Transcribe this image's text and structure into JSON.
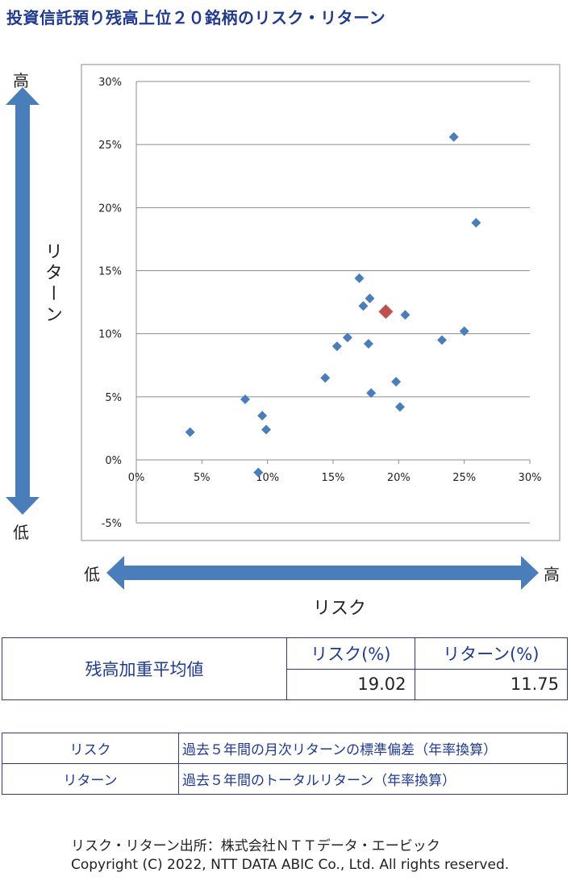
{
  "title": "投資信託預り残高上位２０銘柄のリスク・リターン",
  "labels": {
    "y_high": "高",
    "y_low": "低",
    "y_axis": "リターン",
    "x_low": "低",
    "x_high": "高",
    "x_axis": "リスク"
  },
  "colors": {
    "title": "#1f3a8f",
    "arrow": "#4a7ebb",
    "point": "#4a7ebb",
    "highlight": "#c0504d",
    "table_border": "#2b3e7a"
  },
  "chart_data": {
    "type": "scatter",
    "xlim": [
      0,
      30
    ],
    "ylim": [
      -5,
      30
    ],
    "x_ticks": [
      "0%",
      "5%",
      "10%",
      "15%",
      "20%",
      "25%",
      "30%"
    ],
    "y_ticks": [
      "-5%",
      "0%",
      "5%",
      "10%",
      "15%",
      "20%",
      "25%",
      "30%"
    ],
    "grid": true,
    "series": [
      {
        "points": [
          [
            4.1,
            2.2
          ],
          [
            8.3,
            4.8
          ],
          [
            9.6,
            3.5
          ],
          [
            9.9,
            2.4
          ],
          [
            9.3,
            -1.0
          ],
          [
            14.4,
            6.5
          ],
          [
            15.3,
            9.0
          ],
          [
            16.1,
            9.7
          ],
          [
            17.0,
            14.4
          ],
          [
            17.3,
            12.2
          ],
          [
            17.8,
            12.8
          ],
          [
            17.7,
            9.2
          ],
          [
            17.9,
            5.3
          ],
          [
            19.8,
            6.2
          ],
          [
            20.1,
            4.2
          ],
          [
            20.5,
            11.5
          ],
          [
            23.3,
            9.5
          ],
          [
            25.0,
            10.2
          ],
          [
            24.2,
            25.6
          ],
          [
            25.9,
            18.8
          ]
        ]
      },
      {
        "highlight": true,
        "points": [
          [
            19.02,
            11.75
          ]
        ]
      }
    ]
  },
  "avg_table": {
    "label": "残高加重平均値",
    "risk_header": "リスク(%)",
    "return_header": "リターン(%)",
    "risk_value": "19.02",
    "return_value": "11.75"
  },
  "definitions": [
    {
      "term": "リスク",
      "desc": "過去５年間の月次リターンの標準偏差（年率換算）"
    },
    {
      "term": "リターン",
      "desc": "過去５年間のトータルリターン（年率換算）"
    }
  ],
  "footer": {
    "source": "リスク・リターン出所：株式会社ＮＴＴデータ・エービック",
    "copyright": "Copyright (C)  2022, NTT DATA ABIC Co., Ltd. All rights reserved."
  }
}
